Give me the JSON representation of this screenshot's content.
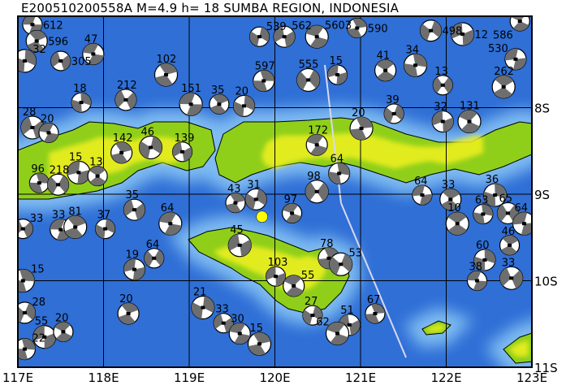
{
  "title": "E200510200558A M=4.9 h= 18 SUMBA REGION, INDONESIA",
  "axes": {
    "lon_range": [
      117,
      123
    ],
    "lat_range": [
      -7,
      -11
    ],
    "lon_ticks": [
      "117E",
      "118E",
      "119E",
      "120E",
      "121E",
      "122E",
      "123E"
    ],
    "lat_ticks": [
      "8S",
      "9S",
      "10S",
      "11S"
    ],
    "grid": true
  },
  "colors": {
    "deep_ocean": "#2f6fd6",
    "shallow_ocean": "#7fbcf2",
    "land_low": "#8fcf1a",
    "land_high": "#f0f020",
    "mechanism_fill": "#6e6e6e",
    "event_marker": "#ffff00"
  },
  "event": {
    "lon": 119.85,
    "lat": -9.26,
    "magnitude": "4.9",
    "depth": "18"
  },
  "mechanisms": [
    {
      "lon": 117.17,
      "lat": -7.04,
      "label": "612"
    },
    {
      "lon": 117.22,
      "lat": -7.23,
      "label": "596"
    },
    {
      "lon": 117.08,
      "lat": -7.46,
      "label": "32"
    },
    {
      "lon": 117.5,
      "lat": -7.46,
      "label": "305"
    },
    {
      "lon": 117.88,
      "lat": -7.38,
      "label": "47"
    },
    {
      "lon": 118.73,
      "lat": -7.62,
      "label": "102"
    },
    {
      "lon": 119.82,
      "lat": -7.18,
      "label": "539"
    },
    {
      "lon": 120.11,
      "lat": -7.18,
      "label": "562"
    },
    {
      "lon": 120.49,
      "lat": -7.18,
      "label": "5603"
    },
    {
      "lon": 120.96,
      "lat": -7.08,
      "label": "590"
    },
    {
      "lon": 121.82,
      "lat": -7.11,
      "label": "498"
    },
    {
      "lon": 122.19,
      "lat": -7.15,
      "label": "12"
    },
    {
      "lon": 122.86,
      "lat": -7.0,
      "label": "586"
    },
    {
      "lon": 119.87,
      "lat": -7.69,
      "label": "597"
    },
    {
      "lon": 120.39,
      "lat": -7.68,
      "label": "555"
    },
    {
      "lon": 120.73,
      "lat": -7.62,
      "label": "15"
    },
    {
      "lon": 121.29,
      "lat": -7.57,
      "label": "41"
    },
    {
      "lon": 121.64,
      "lat": -7.51,
      "label": "34"
    },
    {
      "lon": 121.96,
      "lat": -7.74,
      "label": "13"
    },
    {
      "lon": 122.81,
      "lat": -7.44,
      "label": "530"
    },
    {
      "lon": 122.67,
      "lat": -7.76,
      "label": "262"
    },
    {
      "lon": 117.74,
      "lat": -7.94,
      "label": "18"
    },
    {
      "lon": 118.26,
      "lat": -7.91,
      "label": "212"
    },
    {
      "lon": 119.02,
      "lat": -7.96,
      "label": "151"
    },
    {
      "lon": 119.35,
      "lat": -7.96,
      "label": "35"
    },
    {
      "lon": 119.64,
      "lat": -7.98,
      "label": "20"
    },
    {
      "lon": 117.17,
      "lat": -8.23,
      "label": "28"
    },
    {
      "lon": 117.36,
      "lat": -8.29,
      "label": "20"
    },
    {
      "lon": 118.21,
      "lat": -8.52,
      "label": "142"
    },
    {
      "lon": 118.55,
      "lat": -8.46,
      "label": "46"
    },
    {
      "lon": 118.92,
      "lat": -8.51,
      "label": "139"
    },
    {
      "lon": 120.49,
      "lat": -8.43,
      "label": "172"
    },
    {
      "lon": 121.01,
      "lat": -8.24,
      "label": "20"
    },
    {
      "lon": 121.39,
      "lat": -8.07,
      "label": "39"
    },
    {
      "lon": 121.96,
      "lat": -8.16,
      "label": "32"
    },
    {
      "lon": 122.27,
      "lat": -8.16,
      "label": "131"
    },
    {
      "lon": 117.25,
      "lat": -8.87,
      "label": "96"
    },
    {
      "lon": 117.47,
      "lat": -8.89,
      "label": "218"
    },
    {
      "lon": 117.71,
      "lat": -8.75,
      "label": "15"
    },
    {
      "lon": 117.93,
      "lat": -8.79,
      "label": "13"
    },
    {
      "lon": 120.75,
      "lat": -8.76,
      "label": "64"
    },
    {
      "lon": 120.49,
      "lat": -8.97,
      "label": "98"
    },
    {
      "lon": 121.72,
      "lat": -9.01,
      "label": "64"
    },
    {
      "lon": 122.05,
      "lat": -9.06,
      "label": "33"
    },
    {
      "lon": 122.57,
      "lat": -9.01,
      "label": "36"
    },
    {
      "lon": 117.06,
      "lat": -9.4,
      "label": "33"
    },
    {
      "lon": 117.5,
      "lat": -9.41,
      "label": "33"
    },
    {
      "lon": 117.67,
      "lat": -9.38,
      "label": "81"
    },
    {
      "lon": 118.02,
      "lat": -9.4,
      "label": "37"
    },
    {
      "lon": 118.36,
      "lat": -9.18,
      "label": "35"
    },
    {
      "lon": 118.78,
      "lat": -9.34,
      "label": "64"
    },
    {
      "lon": 119.54,
      "lat": -9.1,
      "label": "43"
    },
    {
      "lon": 119.78,
      "lat": -9.06,
      "label": "31"
    },
    {
      "lon": 119.59,
      "lat": -9.59,
      "label": "45"
    },
    {
      "lon": 120.2,
      "lat": -9.22,
      "label": "97"
    },
    {
      "lon": 120.63,
      "lat": -9.74,
      "label": "78"
    },
    {
      "lon": 120.77,
      "lat": -9.81,
      "label": "53"
    },
    {
      "lon": 120.01,
      "lat": -9.95,
      "label": "103"
    },
    {
      "lon": 120.22,
      "lat": -10.06,
      "label": "55"
    },
    {
      "lon": 117.06,
      "lat": -10.0,
      "label": "15"
    },
    {
      "lon": 118.59,
      "lat": -9.74,
      "label": "64"
    },
    {
      "lon": 118.36,
      "lat": -9.87,
      "label": "19"
    },
    {
      "lon": 122.13,
      "lat": -9.34,
      "label": "10"
    },
    {
      "lon": 122.43,
      "lat": -9.23,
      "label": "63"
    },
    {
      "lon": 122.72,
      "lat": -9.22,
      "label": "65"
    },
    {
      "lon": 122.91,
      "lat": -9.34,
      "label": "64"
    },
    {
      "lon": 122.74,
      "lat": -9.59,
      "label": "46"
    },
    {
      "lon": 122.45,
      "lat": -9.76,
      "label": "60"
    },
    {
      "lon": 122.76,
      "lat": -9.97,
      "label": "33"
    },
    {
      "lon": 122.36,
      "lat": -10.0,
      "label": "38"
    },
    {
      "lon": 118.29,
      "lat": -10.38,
      "label": "20"
    },
    {
      "lon": 119.16,
      "lat": -10.31,
      "label": "21"
    },
    {
      "lon": 119.4,
      "lat": -10.49,
      "label": "33"
    },
    {
      "lon": 119.59,
      "lat": -10.61,
      "label": "30"
    },
    {
      "lon": 119.82,
      "lat": -10.73,
      "label": "15"
    },
    {
      "lon": 120.44,
      "lat": -10.4,
      "label": "27"
    },
    {
      "lon": 120.87,
      "lat": -10.51,
      "label": "51"
    },
    {
      "lon": 120.73,
      "lat": -10.61,
      "label": "62"
    },
    {
      "lon": 121.17,
      "lat": -10.38,
      "label": "67"
    },
    {
      "lon": 117.08,
      "lat": -10.37,
      "label": "28"
    },
    {
      "lon": 117.31,
      "lat": -10.65,
      "label": "55"
    },
    {
      "lon": 117.53,
      "lat": -10.59,
      "label": "20"
    },
    {
      "lon": 117.08,
      "lat": -10.79,
      "label": "22"
    }
  ]
}
